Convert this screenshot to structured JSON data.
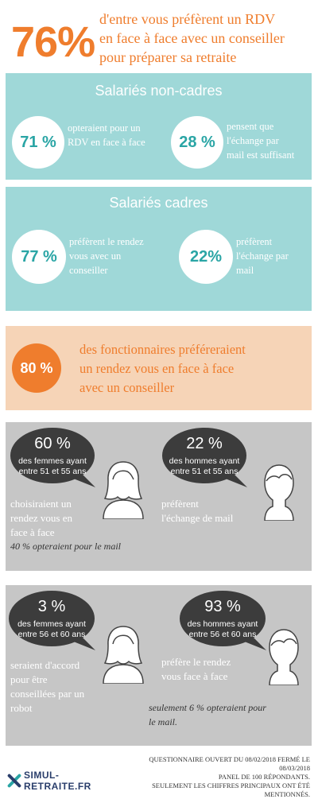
{
  "header": {
    "percent": "76%",
    "text_line1": "d'entre vous préfèrent un RDV",
    "text_line2": "en face à face avec un conseiller",
    "text_line3": "pour préparer sa retraite"
  },
  "non_cadres": {
    "title": "Salariés non-cadres",
    "stat1": {
      "value": "71 %",
      "line1": "opteraient pour un",
      "line2": "RDV en face à face"
    },
    "stat2": {
      "value": "28 %",
      "line1": "pensent que",
      "line2": "l'échange par",
      "line3": "mail est suffisant"
    }
  },
  "cadres": {
    "title": "Salariés cadres",
    "stat1": {
      "value": "77 %",
      "line1": "préfèrent le rendez",
      "line2": "vous avec un",
      "line3": "conseiller"
    },
    "stat2": {
      "value": "22%",
      "line1": "préfèrent",
      "line2": "l'échange par",
      "line3": "mail"
    }
  },
  "fonctionnaires": {
    "value": "80 %",
    "line1": "des fonctionnaires préféreraient",
    "line2": "un rendez vous en face à face",
    "line3": "avec un conseiller"
  },
  "age_51_55": {
    "women": {
      "value": "60 %",
      "bubble1": "des femmes ayant",
      "bubble2": "entre 51 et 55 ans",
      "line1": "choisiraient un",
      "line2": "rendez vous en",
      "line3": "face à face",
      "note": "40 % opteraient pour le mail"
    },
    "men": {
      "value": "22 %",
      "bubble1": "des hommes ayant",
      "bubble2": "entre 51 et 55 ans",
      "line1": "préfèrent",
      "line2": "l'échange de mail"
    }
  },
  "age_56_60": {
    "women": {
      "value": "3 %",
      "bubble1": "des femmes ayant",
      "bubble2": "entre 56 et 60 ans",
      "line1": "seraient d'accord",
      "line2": "pour être",
      "line3": "conseillées par un",
      "line4": "robot"
    },
    "men": {
      "value": "93 %",
      "bubble1": "des hommes ayant",
      "bubble2": "entre 56 et 60 ans",
      "line1": "préfère le rendez",
      "line2": "vous face à face",
      "note1": "seulement 6 % opteraient  pour",
      "note2": "le mail."
    }
  },
  "footer": {
    "line1": "QUESTIONNAIRE OUVERT DU 08/02/2018 FERMÉ LE",
    "line2": "08/03/2018",
    "line3": "PANEL DE 100 RÉPONDANTS.",
    "line4": "SEULEMENT LES CHIFFRES PRINCIPAUX ONT ÉTÉ",
    "line5": "MENTIONNÉS."
  },
  "logo": {
    "line1": "SIMUL-",
    "line2": "RETRAITE.FR"
  },
  "colors": {
    "orange": "#ef7d2d",
    "teal": "#9fd8d8",
    "teal_text": "#2aa5a5",
    "peach": "#f6d4b7",
    "grey": "#c6c6c6",
    "bubble": "#3c3c3c",
    "navy": "#2a3e6b"
  }
}
